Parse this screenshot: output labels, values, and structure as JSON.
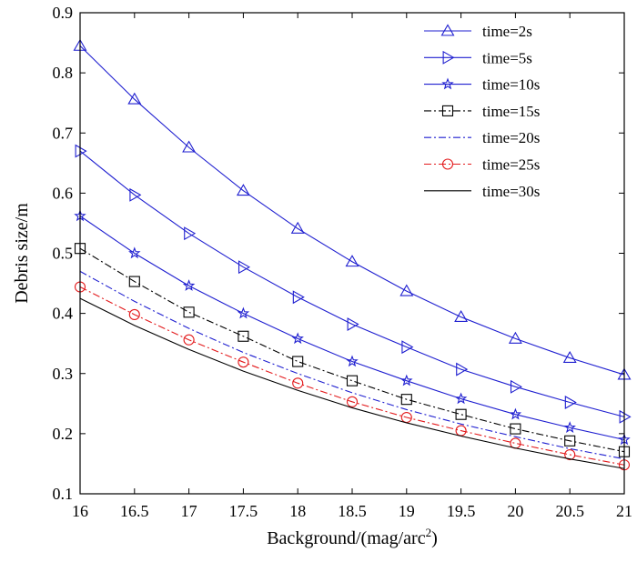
{
  "chart_data": {
    "type": "line",
    "xlabel": "Background/(mag/arc",
    "xlabel_sup": "2",
    "xlabel_close": ")",
    "ylabel": "Debris size/m",
    "xlim": [
      16,
      21
    ],
    "ylim": [
      0.1,
      0.9
    ],
    "xticks": [
      "16",
      "16.5",
      "17",
      "17.5",
      "18",
      "18.5",
      "19",
      "19.5",
      "20",
      "20.5",
      "21"
    ],
    "yticks": [
      "0.1",
      "0.2",
      "0.3",
      "0.4",
      "0.5",
      "0.6",
      "0.7",
      "0.8",
      "0.9"
    ],
    "x": [
      16,
      16.5,
      17,
      17.5,
      18,
      18.5,
      19,
      19.5,
      20,
      20.5,
      21
    ],
    "legend_position": "top-right",
    "series": [
      {
        "name": "time=2s",
        "color": "#1f1fd0",
        "dash": "solid",
        "marker": "triangle-up",
        "values": [
          0.845,
          0.756,
          0.676,
          0.604,
          0.541,
          0.486,
          0.437,
          0.394,
          0.358,
          0.326,
          0.298
        ]
      },
      {
        "name": "time=5s",
        "color": "#1f1fd0",
        "dash": "solid",
        "marker": "triangle-right",
        "values": [
          0.67,
          0.597,
          0.533,
          0.477,
          0.427,
          0.382,
          0.344,
          0.307,
          0.278,
          0.252,
          0.228
        ]
      },
      {
        "name": "time=10s",
        "color": "#1f1fd0",
        "dash": "solid",
        "marker": "star",
        "values": [
          0.562,
          0.5,
          0.446,
          0.4,
          0.358,
          0.32,
          0.288,
          0.258,
          0.232,
          0.21,
          0.19
        ]
      },
      {
        "name": "time=15s",
        "color": "#000000",
        "dash": "dashdot",
        "marker": "square",
        "values": [
          0.508,
          0.453,
          0.402,
          0.362,
          0.32,
          0.288,
          0.257,
          0.232,
          0.208,
          0.188,
          0.17
        ]
      },
      {
        "name": "time=20s",
        "color": "#1f1fd0",
        "dash": "dashdot",
        "marker": "none",
        "values": [
          0.47,
          0.42,
          0.375,
          0.335,
          0.3,
          0.268,
          0.24,
          0.216,
          0.195,
          0.175,
          0.158
        ]
      },
      {
        "name": "time=25s",
        "color": "#e31a1c",
        "dash": "dashdot",
        "marker": "circle",
        "values": [
          0.444,
          0.398,
          0.356,
          0.319,
          0.284,
          0.253,
          0.227,
          0.205,
          0.184,
          0.165,
          0.148
        ]
      },
      {
        "name": "time=30s",
        "color": "#000000",
        "dash": "solid",
        "marker": "none",
        "values": [
          0.425,
          0.38,
          0.34,
          0.304,
          0.272,
          0.243,
          0.218,
          0.196,
          0.176,
          0.158,
          0.142
        ]
      }
    ]
  }
}
